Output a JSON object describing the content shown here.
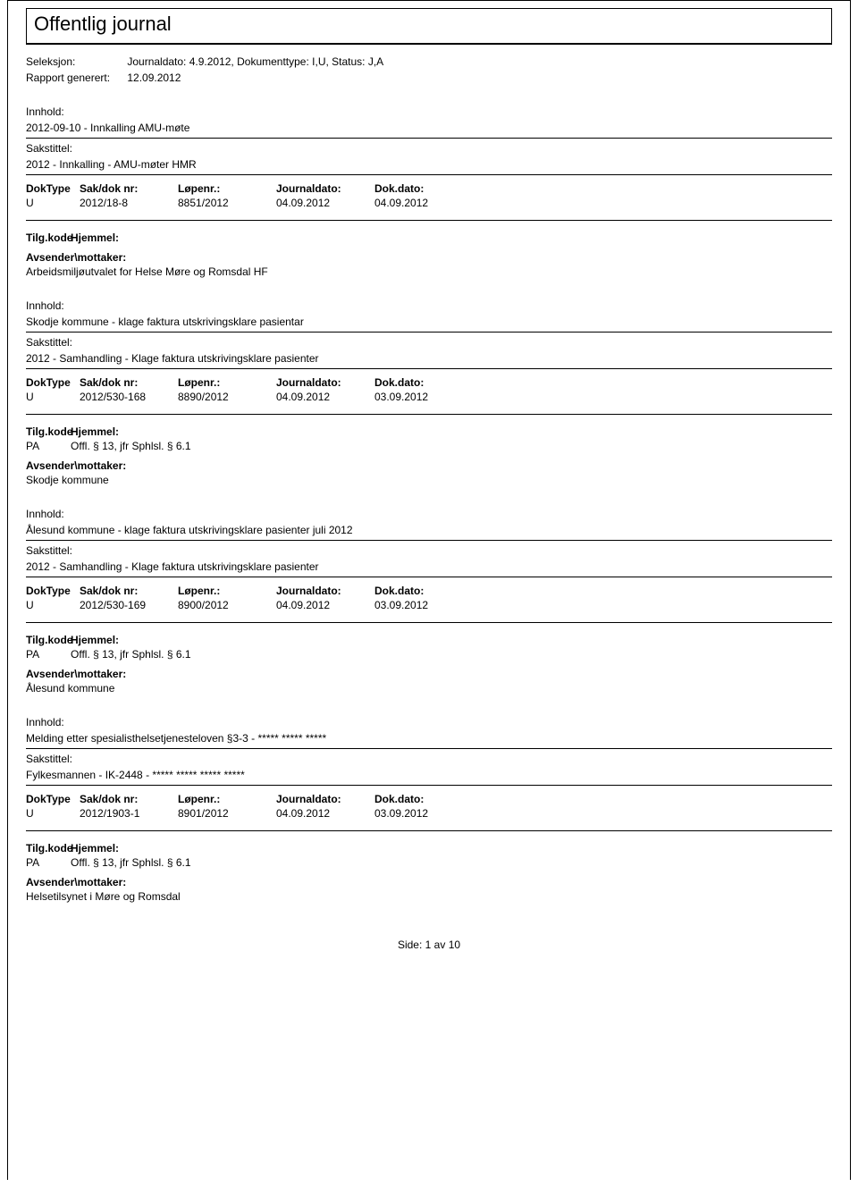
{
  "page": {
    "title": "Offentlig journal",
    "seleksjon_label": "Seleksjon:",
    "seleksjon_value": "Journaldato: 4.9.2012, Dokumenttype: I,U, Status: J,A",
    "rapport_label": "Rapport generert:",
    "rapport_value": "12.09.2012",
    "footer_side_label": "Side:",
    "footer_page": "1",
    "footer_av": "av",
    "footer_total": "10"
  },
  "labels": {
    "innhold": "Innhold:",
    "sakstittel": "Sakstittel:",
    "doktype": "DokType",
    "saknr": "Sak/dok nr:",
    "lopenr": "Løpenr.:",
    "journaldato": "Journaldato:",
    "dokdato": "Dok.dato:",
    "tilgkode": "Tilg.kode",
    "hjemmel": "Hjemmel:",
    "avsender": "Avsender\\mottaker:"
  },
  "entries": [
    {
      "innhold": "2012-09-10 - Innkalling AMU-møte",
      "sakstittel": "2012 - Innkalling - AMU-møter HMR",
      "doktype": "U",
      "saknr": "2012/18-8",
      "lopenr": "8851/2012",
      "journaldato": "04.09.2012",
      "dokdato": "04.09.2012",
      "tilgkode": "",
      "hjemmel": "",
      "avsender": "Arbeidsmiljøutvalet for Helse Møre og Romsdal HF"
    },
    {
      "innhold": "Skodje kommune - klage faktura utskrivingsklare pasientar",
      "sakstittel": "2012 - Samhandling - Klage faktura utskrivingsklare pasienter",
      "doktype": "U",
      "saknr": "2012/530-168",
      "lopenr": "8890/2012",
      "journaldato": "04.09.2012",
      "dokdato": "03.09.2012",
      "tilgkode": "PA",
      "hjemmel": "Offl. § 13, jfr Sphlsl. § 6.1",
      "avsender": "Skodje kommune"
    },
    {
      "innhold": "Ålesund kommune - klage faktura utskrivingsklare pasienter juli 2012",
      "sakstittel": "2012 - Samhandling - Klage faktura utskrivingsklare pasienter",
      "doktype": "U",
      "saknr": "2012/530-169",
      "lopenr": "8900/2012",
      "journaldato": "04.09.2012",
      "dokdato": "03.09.2012",
      "tilgkode": "PA",
      "hjemmel": "Offl. § 13, jfr Sphlsl. § 6.1",
      "avsender": "Ålesund kommune"
    },
    {
      "innhold": "Melding etter spesialisthelsetjenesteloven §3-3 - ***** ***** *****",
      "sakstittel": "Fylkesmannen - IK-2448 - ***** ***** ***** *****",
      "doktype": "U",
      "saknr": "2012/1903-1",
      "lopenr": "8901/2012",
      "journaldato": "04.09.2012",
      "dokdato": "03.09.2012",
      "tilgkode": "PA",
      "hjemmel": "Offl. § 13, jfr Sphlsl. § 6.1",
      "avsender": "Helsetilsynet i Møre og Romsdal"
    }
  ],
  "styles": {
    "background_color": "#ffffff",
    "text_color": "#000000",
    "line_color": "#000000",
    "title_fontsize": 22,
    "body_fontsize": 12,
    "label_fontsize": 12,
    "font_family": "Verdana, Arial, sans-serif"
  }
}
